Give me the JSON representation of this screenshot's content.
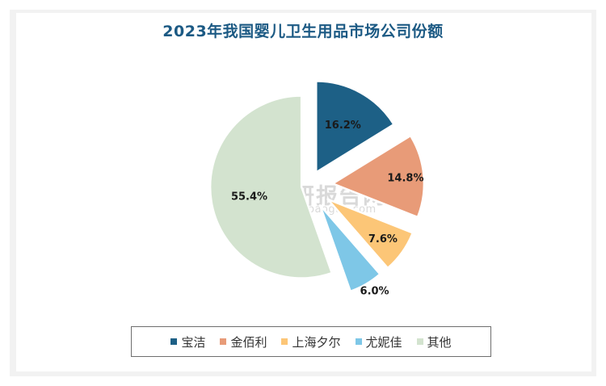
{
  "chart_data": {
    "type": "pie",
    "title": "2023年我国婴儿卫生用品市场公司份额",
    "slices": [
      {
        "label": "宝洁",
        "value": 16.2,
        "value_label": "16.2%",
        "color": "#1d6086"
      },
      {
        "label": "金佰利",
        "value": 14.8,
        "value_label": "14.8%",
        "color": "#e89b78"
      },
      {
        "label": "上海夕尔",
        "value": 7.6,
        "value_label": "7.6%",
        "color": "#fcc677"
      },
      {
        "label": "尤妮佳",
        "value": 6.0,
        "value_label": "6.0%",
        "color": "#7ec7e7"
      },
      {
        "label": "其他",
        "value": 55.4,
        "value_label": "55.4%",
        "color": "#d3e3cf"
      }
    ],
    "legend_position": "bottom"
  },
  "watermark": {
    "text": "观研报告网",
    "subtext": "chinabaogao.com"
  }
}
